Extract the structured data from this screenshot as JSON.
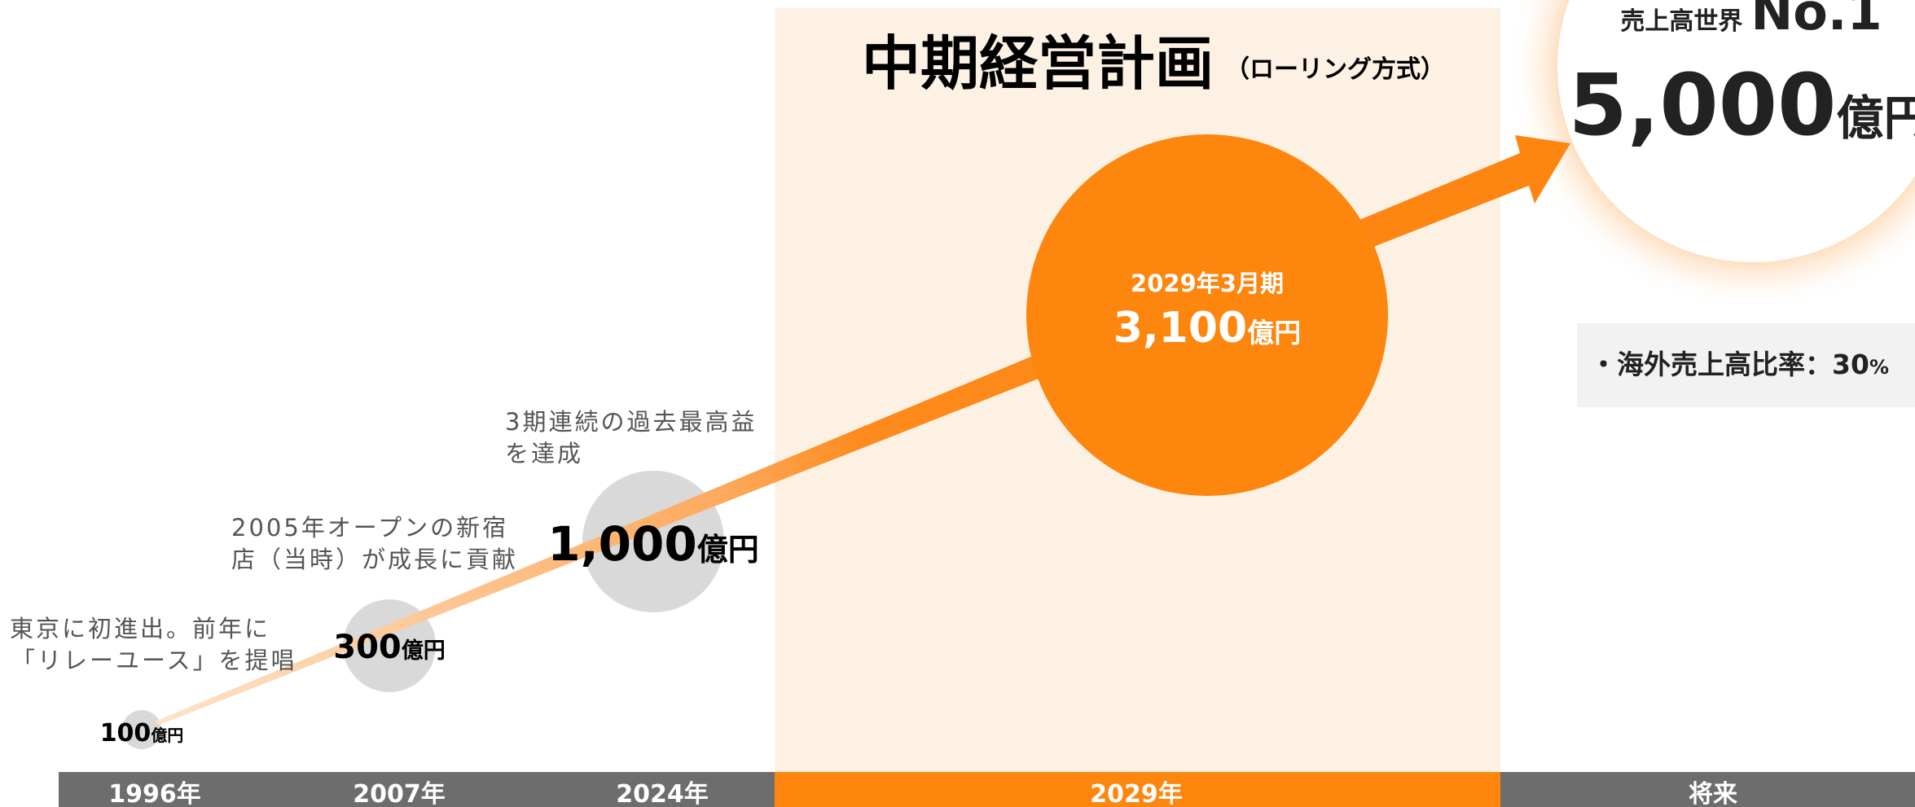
{
  "header": {
    "title": "中期経営計画",
    "subtitle": "（ローリング方式）"
  },
  "milestones": [
    {
      "year": "1996年",
      "amount": "100",
      "unit": "億円",
      "note": [
        "東京に初進出。前年に",
        "「リレーユース」を提唱"
      ]
    },
    {
      "year": "2007年",
      "amount": "300",
      "unit": "億円",
      "note": [
        "2005年オープンの新宿",
        "店（当時）が成長に貢献"
      ]
    },
    {
      "year": "2024年",
      "amount": "1,000",
      "unit": "億円",
      "note": [
        "3期連続の過去最高益",
        "を達成"
      ]
    },
    {
      "year": "2029年",
      "period": "2029年3月期",
      "amount": "3,100",
      "unit": "億円"
    },
    {
      "year": "将来",
      "goal": "売上高世界",
      "rank": "No.1",
      "amount": "5,000",
      "unit": "億円",
      "overseas": "・海外売上高比率：30",
      "overseas_unit": "%"
    }
  ]
}
